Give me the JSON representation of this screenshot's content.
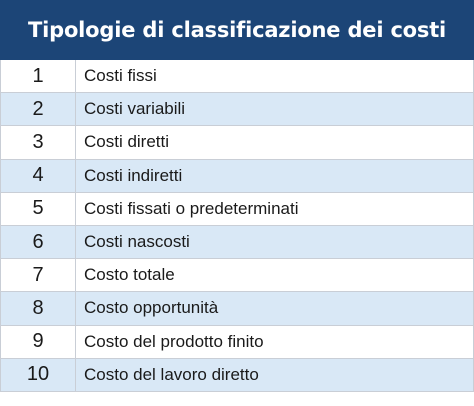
{
  "table": {
    "title": "Tipologie di classificazione dei costi",
    "rows": [
      {
        "number": "1",
        "label": "Costi fissi"
      },
      {
        "number": "2",
        "label": "Costi variabili"
      },
      {
        "number": "3",
        "label": "Costi diretti"
      },
      {
        "number": "4",
        "label": "Costi indiretti"
      },
      {
        "number": "5",
        "label": "Costi fissati o predeterminati"
      },
      {
        "number": "6",
        "label": "Costi nascosti"
      },
      {
        "number": "7",
        "label": "Costo totale"
      },
      {
        "number": "8",
        "label": "Costo opportunità"
      },
      {
        "number": "9",
        "label": "Costo del prodotto finito"
      },
      {
        "number": "10",
        "label": "Costo del lavoro diretto"
      }
    ],
    "colors": {
      "header_bg": "#1c4577",
      "stripe_bg": "#d9e8f6",
      "border": "#c9ced6"
    }
  }
}
